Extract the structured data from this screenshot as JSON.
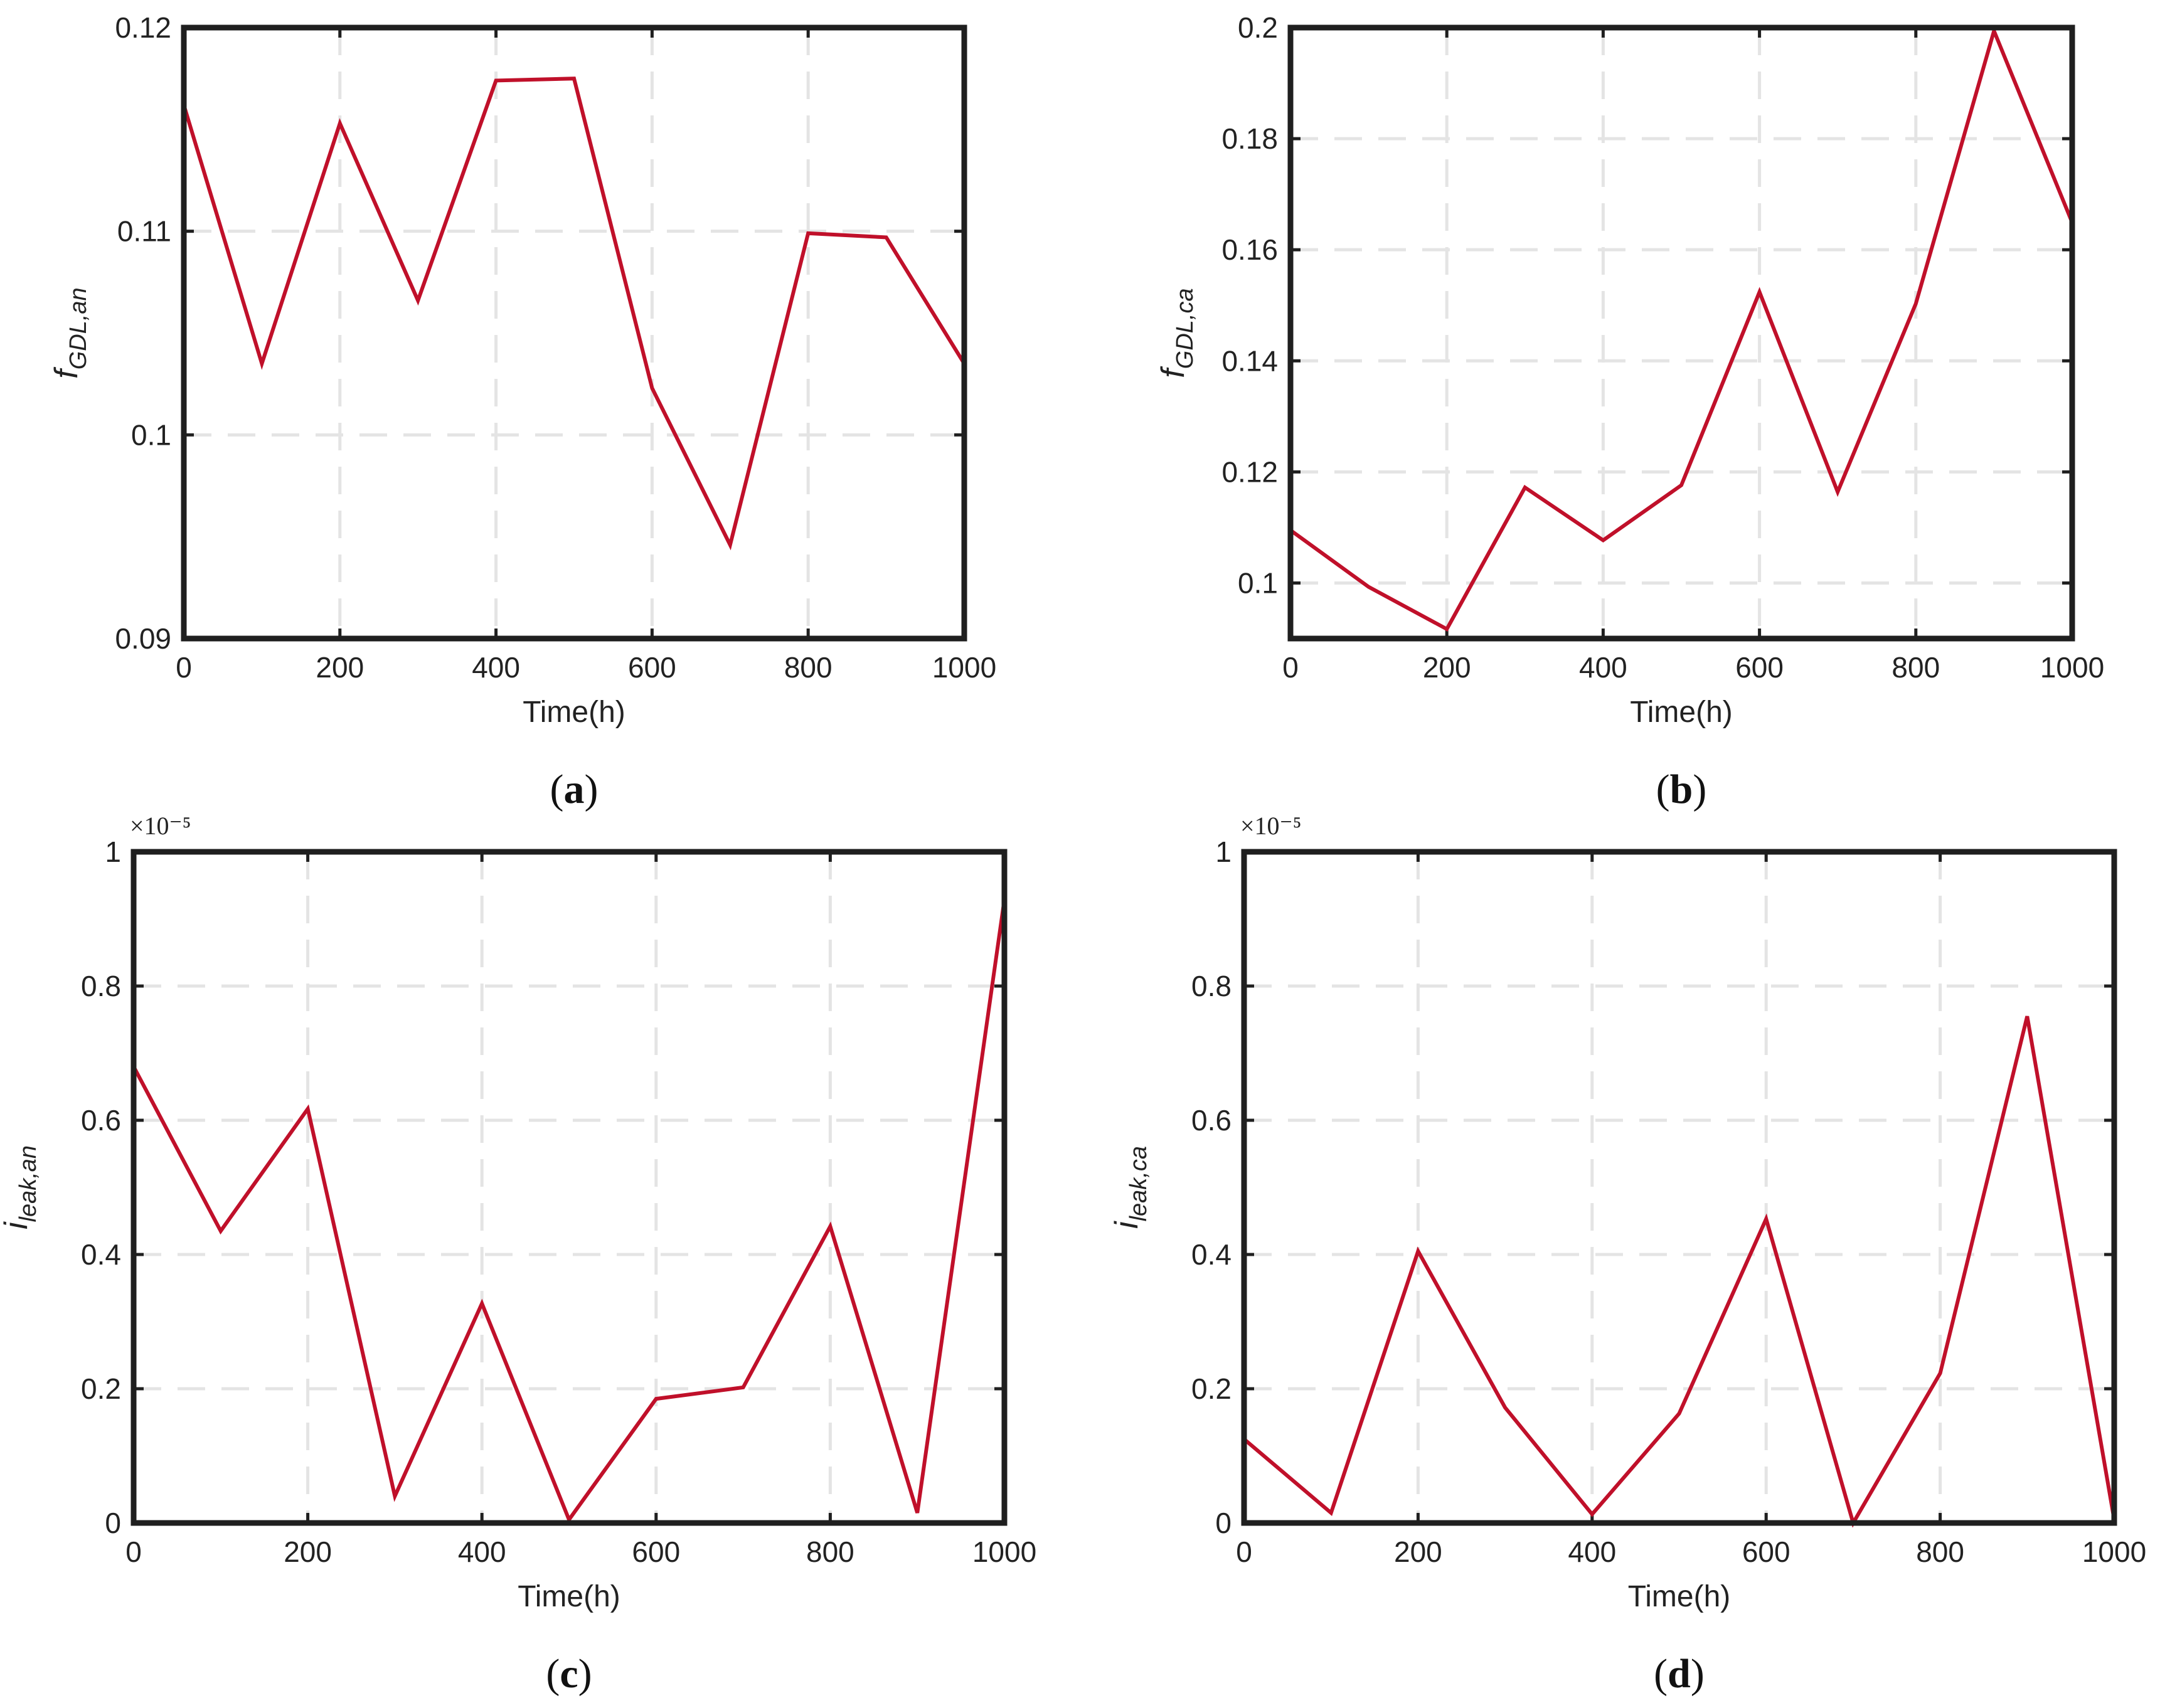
{
  "style": {
    "line_color": "#c0102a",
    "frame_color": "#1f1f1f",
    "grid_color": "#e4e4e4"
  },
  "chart_data": [
    {
      "id": "a",
      "type": "line",
      "panel_label": "a",
      "xlabel": "Time(h)",
      "ylabel_main": "f",
      "ylabel_sub": "GDL,an",
      "exponent_label": "",
      "x": [
        0,
        100,
        200,
        300,
        400,
        500,
        600,
        700,
        800,
        900,
        1000
      ],
      "y": [
        0.1162,
        0.1035,
        0.1153,
        0.1066,
        0.1174,
        0.1175,
        0.1023,
        0.0946,
        0.1099,
        0.1097,
        0.1035
      ],
      "xlim": [
        0,
        1000
      ],
      "ylim": [
        0.09,
        0.12
      ],
      "xticks": [
        0,
        200,
        400,
        600,
        800,
        1000
      ],
      "xtick_labels": [
        "0",
        "200",
        "400",
        "600",
        "800",
        "1000"
      ],
      "yticks": [
        0.09,
        0.1,
        0.11,
        0.12
      ],
      "ytick_labels": [
        "0.09",
        "0.1",
        "0.11",
        "0.12"
      ],
      "grid": true
    },
    {
      "id": "b",
      "type": "line",
      "panel_label": "b",
      "xlabel": "Time(h)",
      "ylabel_main": "f",
      "ylabel_sub": "GDL,ca",
      "exponent_label": "",
      "x": [
        0,
        100,
        200,
        300,
        400,
        500,
        600,
        700,
        800,
        900,
        1000
      ],
      "y": [
        0.1095,
        0.0993,
        0.0917,
        0.1172,
        0.1077,
        0.1176,
        0.1524,
        0.1164,
        0.1503,
        0.1994,
        0.1649
      ],
      "xlim": [
        0,
        1000
      ],
      "ylim": [
        0.09,
        0.2
      ],
      "xticks": [
        0,
        200,
        400,
        600,
        800,
        1000
      ],
      "xtick_labels": [
        "0",
        "200",
        "400",
        "600",
        "800",
        "1000"
      ],
      "yticks": [
        0.1,
        0.12,
        0.14,
        0.16,
        0.18,
        0.2
      ],
      "ytick_labels": [
        "0.1",
        "0.12",
        "0.14",
        "0.16",
        "0.18",
        "0.2"
      ],
      "grid": true
    },
    {
      "id": "c",
      "type": "line",
      "panel_label": "c",
      "xlabel": "Time(h)",
      "ylabel_main": "i",
      "ylabel_sub": "leak,an",
      "exponent_label": "×10⁻⁵",
      "x": [
        0,
        100,
        200,
        300,
        400,
        500,
        600,
        700,
        800,
        900,
        1000
      ],
      "y": [
        0.68,
        0.435,
        0.617,
        0.04,
        0.327,
        0.005,
        0.185,
        0.202,
        0.442,
        0.015,
        0.929
      ],
      "xlim": [
        0,
        1000
      ],
      "ylim": [
        0,
        1
      ],
      "xticks": [
        0,
        200,
        400,
        600,
        800,
        1000
      ],
      "xtick_labels": [
        "0",
        "200",
        "400",
        "600",
        "800",
        "1000"
      ],
      "yticks": [
        0,
        0.2,
        0.4,
        0.6,
        0.8,
        1
      ],
      "ytick_labels": [
        "0",
        "0.2",
        "0.4",
        "0.6",
        "0.8",
        "1"
      ],
      "grid": true
    },
    {
      "id": "d",
      "type": "line",
      "panel_label": "d",
      "xlabel": "Time(h)",
      "ylabel_main": "i",
      "ylabel_sub": "leak,ca",
      "exponent_label": "×10⁻⁵",
      "x": [
        0,
        100,
        200,
        300,
        400,
        500,
        600,
        700,
        800,
        900,
        1000
      ],
      "y": [
        0.125,
        0.015,
        0.405,
        0.172,
        0.013,
        0.163,
        0.453,
        0.0,
        0.223,
        0.755,
        0.005
      ],
      "xlim": [
        0,
        1000
      ],
      "ylim": [
        0,
        1
      ],
      "xticks": [
        0,
        200,
        400,
        600,
        800,
        1000
      ],
      "xtick_labels": [
        "0",
        "200",
        "400",
        "600",
        "800",
        "1000"
      ],
      "yticks": [
        0,
        0.2,
        0.4,
        0.6,
        0.8,
        1
      ],
      "ytick_labels": [
        "0",
        "0.2",
        "0.4",
        "0.6",
        "0.8",
        "1"
      ],
      "grid": true
    }
  ]
}
